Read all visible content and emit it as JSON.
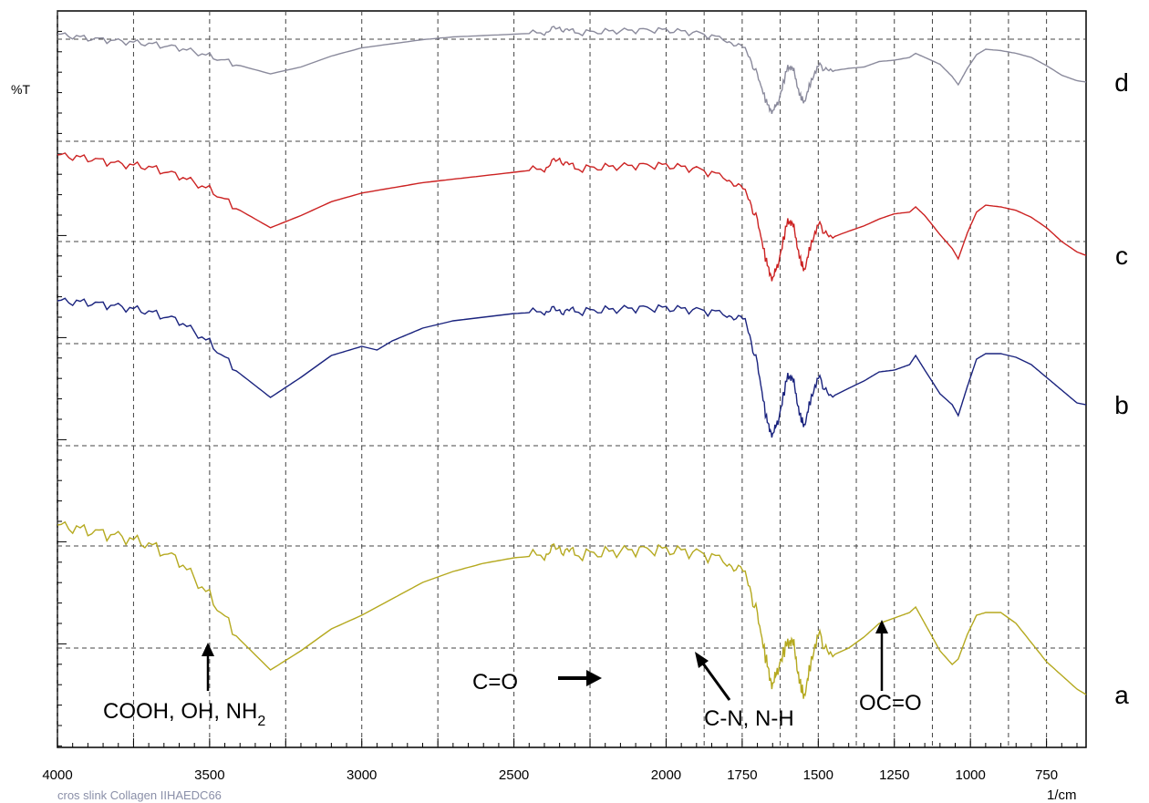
{
  "chart_data": {
    "type": "line",
    "title": "",
    "ylabel": "%T",
    "xlabel": "1/cm",
    "footer_text": "cros slink Collagen IIHAEDC66",
    "xlim": [
      4000,
      620
    ],
    "x_reversed": true,
    "grid": true,
    "x_ticks": [
      {
        "value": 4000,
        "label": "4000"
      },
      {
        "value": 3500,
        "label": "3500"
      },
      {
        "value": 3000,
        "label": "3000"
      },
      {
        "value": 2500,
        "label": "2500"
      },
      {
        "value": 2000,
        "label": "2000"
      },
      {
        "value": 1750,
        "label": "1750"
      },
      {
        "value": 1500,
        "label": "1500"
      },
      {
        "value": 1250,
        "label": "1250"
      },
      {
        "value": 1000,
        "label": "1000"
      },
      {
        "value": 750,
        "label": "750"
      }
    ],
    "series": [
      {
        "label": "d",
        "color": "#8a8a9c",
        "points": [
          [
            4000,
            95
          ],
          [
            3900,
            92
          ],
          [
            3800,
            90
          ],
          [
            3700,
            88
          ],
          [
            3600,
            85
          ],
          [
            3500,
            79
          ],
          [
            3400,
            72
          ],
          [
            3300,
            66
          ],
          [
            3200,
            71
          ],
          [
            3100,
            79
          ],
          [
            3000,
            85
          ],
          [
            2900,
            88
          ],
          [
            2800,
            91
          ],
          [
            2700,
            93
          ],
          [
            2600,
            94
          ],
          [
            2500,
            95
          ],
          [
            2400,
            96
          ],
          [
            2350,
            100
          ],
          [
            2300,
            96
          ],
          [
            2200,
            97
          ],
          [
            2100,
            98
          ],
          [
            2000,
            98
          ],
          [
            1900,
            96
          ],
          [
            1800,
            91
          ],
          [
            1740,
            84
          ],
          [
            1700,
            65
          ],
          [
            1670,
            45
          ],
          [
            1650,
            38
          ],
          [
            1630,
            46
          ],
          [
            1600,
            72
          ],
          [
            1580,
            68
          ],
          [
            1560,
            50
          ],
          [
            1545,
            45
          ],
          [
            1530,
            57
          ],
          [
            1500,
            72
          ],
          [
            1460,
            68
          ],
          [
            1400,
            70
          ],
          [
            1350,
            71
          ],
          [
            1300,
            75
          ],
          [
            1250,
            76
          ],
          [
            1200,
            78
          ],
          [
            1180,
            81
          ],
          [
            1150,
            78
          ],
          [
            1100,
            73
          ],
          [
            1060,
            64
          ],
          [
            1040,
            58
          ],
          [
            1010,
            70
          ],
          [
            980,
            80
          ],
          [
            950,
            84
          ],
          [
            900,
            83
          ],
          [
            850,
            81
          ],
          [
            800,
            78
          ],
          [
            750,
            72
          ],
          [
            700,
            65
          ],
          [
            650,
            61
          ],
          [
            620,
            60
          ]
        ]
      },
      {
        "label": "c",
        "color": "#cc2222",
        "points": [
          [
            4000,
            100
          ],
          [
            3900,
            98
          ],
          [
            3800,
            95
          ],
          [
            3700,
            93
          ],
          [
            3600,
            88
          ],
          [
            3500,
            80
          ],
          [
            3400,
            68
          ],
          [
            3300,
            58
          ],
          [
            3200,
            65
          ],
          [
            3100,
            73
          ],
          [
            3000,
            78
          ],
          [
            2900,
            81
          ],
          [
            2800,
            84
          ],
          [
            2700,
            86
          ],
          [
            2600,
            88
          ],
          [
            2500,
            90
          ],
          [
            2400,
            92
          ],
          [
            2350,
            98
          ],
          [
            2300,
            92
          ],
          [
            2200,
            93
          ],
          [
            2100,
            94
          ],
          [
            2000,
            94
          ],
          [
            1900,
            92
          ],
          [
            1800,
            87
          ],
          [
            1740,
            79
          ],
          [
            1700,
            62
          ],
          [
            1670,
            38
          ],
          [
            1650,
            28
          ],
          [
            1630,
            38
          ],
          [
            1600,
            63
          ],
          [
            1580,
            58
          ],
          [
            1560,
            40
          ],
          [
            1545,
            33
          ],
          [
            1530,
            45
          ],
          [
            1500,
            60
          ],
          [
            1460,
            52
          ],
          [
            1400,
            56
          ],
          [
            1350,
            59
          ],
          [
            1300,
            63
          ],
          [
            1250,
            66
          ],
          [
            1200,
            67
          ],
          [
            1180,
            70
          ],
          [
            1150,
            65
          ],
          [
            1100,
            54
          ],
          [
            1060,
            46
          ],
          [
            1040,
            40
          ],
          [
            1010,
            55
          ],
          [
            980,
            67
          ],
          [
            950,
            71
          ],
          [
            900,
            70
          ],
          [
            850,
            68
          ],
          [
            800,
            64
          ],
          [
            750,
            58
          ],
          [
            700,
            50
          ],
          [
            650,
            44
          ],
          [
            620,
            42
          ]
        ]
      },
      {
        "label": "b",
        "color": "#1a237e",
        "points": [
          [
            4000,
            85
          ],
          [
            3900,
            84
          ],
          [
            3800,
            82
          ],
          [
            3700,
            79
          ],
          [
            3600,
            74
          ],
          [
            3500,
            62
          ],
          [
            3400,
            45
          ],
          [
            3300,
            32
          ],
          [
            3200,
            43
          ],
          [
            3100,
            55
          ],
          [
            3000,
            60
          ],
          [
            2950,
            58
          ],
          [
            2900,
            63
          ],
          [
            2800,
            70
          ],
          [
            2700,
            74
          ],
          [
            2600,
            76
          ],
          [
            2500,
            78
          ],
          [
            2400,
            79
          ],
          [
            2350,
            80
          ],
          [
            2300,
            79
          ],
          [
            2200,
            80
          ],
          [
            2100,
            81
          ],
          [
            2000,
            81
          ],
          [
            1900,
            80
          ],
          [
            1800,
            78
          ],
          [
            1740,
            74
          ],
          [
            1700,
            50
          ],
          [
            1670,
            20
          ],
          [
            1650,
            11
          ],
          [
            1630,
            20
          ],
          [
            1600,
            45
          ],
          [
            1580,
            40
          ],
          [
            1560,
            22
          ],
          [
            1545,
            16
          ],
          [
            1530,
            28
          ],
          [
            1500,
            43
          ],
          [
            1460,
            32
          ],
          [
            1400,
            37
          ],
          [
            1350,
            41
          ],
          [
            1300,
            46
          ],
          [
            1250,
            47
          ],
          [
            1200,
            50
          ],
          [
            1180,
            55
          ],
          [
            1150,
            47
          ],
          [
            1100,
            34
          ],
          [
            1060,
            28
          ],
          [
            1040,
            22
          ],
          [
            1010,
            38
          ],
          [
            980,
            53
          ],
          [
            950,
            56
          ],
          [
            900,
            56
          ],
          [
            850,
            54
          ],
          [
            800,
            50
          ],
          [
            750,
            43
          ],
          [
            700,
            36
          ],
          [
            650,
            29
          ],
          [
            620,
            28
          ]
        ]
      },
      {
        "label": "a",
        "color": "#b5a91f",
        "points": [
          [
            4000,
            58
          ],
          [
            3900,
            56
          ],
          [
            3800,
            54
          ],
          [
            3700,
            51
          ],
          [
            3600,
            45
          ],
          [
            3500,
            32
          ],
          [
            3400,
            16
          ],
          [
            3300,
            5
          ],
          [
            3200,
            12
          ],
          [
            3100,
            20
          ],
          [
            3000,
            25
          ],
          [
            2900,
            31
          ],
          [
            2800,
            37
          ],
          [
            2700,
            41
          ],
          [
            2600,
            44
          ],
          [
            2500,
            46
          ],
          [
            2400,
            47
          ],
          [
            2350,
            50
          ],
          [
            2300,
            47
          ],
          [
            2200,
            48
          ],
          [
            2100,
            49
          ],
          [
            2000,
            49
          ],
          [
            1900,
            48
          ],
          [
            1800,
            45
          ],
          [
            1740,
            40
          ],
          [
            1700,
            25
          ],
          [
            1670,
            8
          ],
          [
            1650,
            -1
          ],
          [
            1630,
            6
          ],
          [
            1600,
            16
          ],
          [
            1580,
            14
          ],
          [
            1560,
            0
          ],
          [
            1545,
            -5
          ],
          [
            1530,
            5
          ],
          [
            1500,
            18
          ],
          [
            1460,
            10
          ],
          [
            1400,
            13
          ],
          [
            1350,
            17
          ],
          [
            1300,
            22
          ],
          [
            1250,
            24
          ],
          [
            1200,
            26
          ],
          [
            1180,
            28
          ],
          [
            1150,
            22
          ],
          [
            1100,
            12
          ],
          [
            1060,
            7
          ],
          [
            1040,
            9
          ],
          [
            1010,
            18
          ],
          [
            980,
            25
          ],
          [
            950,
            26
          ],
          [
            900,
            26
          ],
          [
            850,
            22
          ],
          [
            800,
            15
          ],
          [
            750,
            8
          ],
          [
            700,
            3
          ],
          [
            650,
            -2
          ],
          [
            620,
            -4
          ]
        ]
      }
    ],
    "annotations": [
      {
        "text": "COOH, OH, NH",
        "subscript": "2"
      },
      {
        "text": "C=O"
      },
      {
        "text": "C-N, N-H"
      },
      {
        "text": "OC=O"
      }
    ]
  }
}
